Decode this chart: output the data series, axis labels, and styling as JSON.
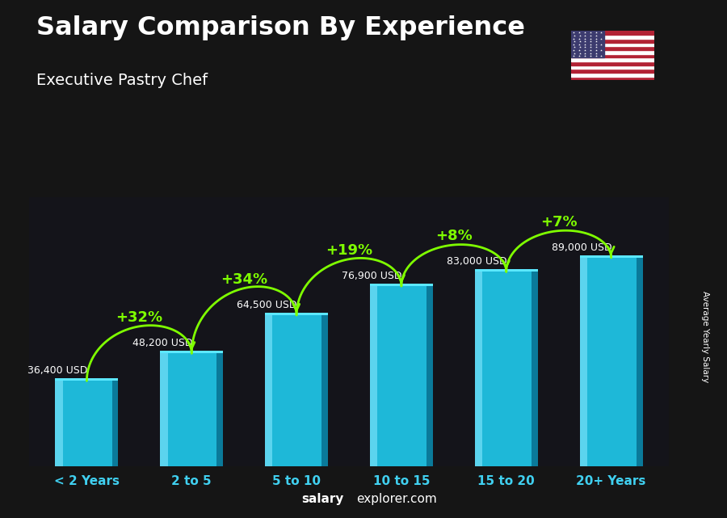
{
  "title": "Salary Comparison By Experience",
  "subtitle": "Executive Pastry Chef",
  "categories": [
    "< 2 Years",
    "2 to 5",
    "5 to 10",
    "10 to 15",
    "15 to 20",
    "20+ Years"
  ],
  "values": [
    36400,
    48200,
    64500,
    76900,
    83000,
    89000
  ],
  "labels": [
    "36,400 USD",
    "48,200 USD",
    "64,500 USD",
    "76,900 USD",
    "83,000 USD",
    "89,000 USD"
  ],
  "pct_changes": [
    null,
    "+32%",
    "+34%",
    "+19%",
    "+8%",
    "+7%"
  ],
  "bar_color_main": "#1EB8D8",
  "bar_color_light": "#5BD4EE",
  "bar_color_dark": "#0A7A9A",
  "bar_color_top": "#5CE8FF",
  "pct_color": "#7FFF00",
  "label_color": "#FFFFFF",
  "bg_color": "#1a1a1a",
  "title_color": "#FFFFFF",
  "subtitle_color": "#FFFFFF",
  "tick_color": "#40D0F0",
  "ylabel": "Average Yearly Salary",
  "footer_bold": "salary",
  "footer_normal": "explorer.com",
  "ylim": [
    0,
    115000
  ],
  "bar_width": 0.6
}
